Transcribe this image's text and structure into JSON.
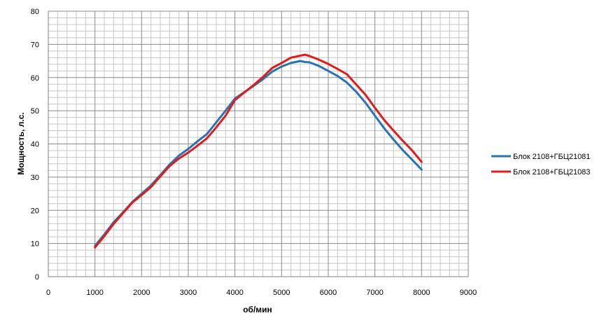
{
  "chart_data": {
    "type": "line",
    "title": "",
    "xlabel": "об/мин",
    "ylabel": "Мощность, л.с.",
    "xlim": [
      0,
      9000
    ],
    "ylim": [
      0,
      80
    ],
    "x_ticks": [
      "0",
      "1000",
      "2000",
      "3000",
      "4000",
      "5000",
      "6000",
      "7000",
      "8000",
      "9000"
    ],
    "y_ticks": [
      "0",
      "10",
      "20",
      "30",
      "40",
      "50",
      "60",
      "70",
      "80"
    ],
    "grid": true,
    "legend_position": "right",
    "series": [
      {
        "name": "Блок 2108+ГБЦ21081",
        "color": "#2a72b0",
        "x": [
          1000,
          1200,
          1400,
          1600,
          1800,
          2000,
          2200,
          2400,
          2600,
          2800,
          3000,
          3200,
          3400,
          3600,
          3800,
          4000,
          4200,
          4400,
          4600,
          4800,
          5000,
          5200,
          5400,
          5500,
          5600,
          5800,
          6000,
          6200,
          6400,
          6600,
          6800,
          7000,
          7200,
          7400,
          7600,
          7800,
          8000
        ],
        "y": [
          9.3,
          12.7,
          16.4,
          19.4,
          22.5,
          25.0,
          27.5,
          30.6,
          33.8,
          36.5,
          38.5,
          40.8,
          43.0,
          46.5,
          50.0,
          53.7,
          55.6,
          57.5,
          59.5,
          61.8,
          63.3,
          64.4,
          65.0,
          64.7,
          64.6,
          63.5,
          62.0,
          60.5,
          58.5,
          55.7,
          52.4,
          48.5,
          44.7,
          41.3,
          38.1,
          35.2,
          32.3
        ]
      },
      {
        "name": "Блок 2108+ГБЦ21083",
        "color": "#e01c1c",
        "x": [
          1000,
          1200,
          1400,
          1600,
          1800,
          2000,
          2200,
          2400,
          2600,
          2800,
          3000,
          3200,
          3400,
          3600,
          3800,
          4000,
          4200,
          4400,
          4600,
          4800,
          5000,
          5200,
          5400,
          5500,
          5600,
          5800,
          6000,
          6200,
          6400,
          6600,
          6800,
          7000,
          7200,
          7400,
          7600,
          7800,
          8000
        ],
        "y": [
          8.8,
          12.2,
          15.9,
          19.1,
          22.3,
          24.6,
          27.0,
          30.2,
          33.3,
          35.6,
          37.4,
          39.5,
          41.7,
          45.0,
          48.5,
          53.2,
          55.5,
          57.7,
          60.2,
          62.9,
          64.4,
          66.0,
          66.6,
          66.9,
          66.5,
          65.4,
          64.1,
          62.6,
          61.0,
          57.9,
          54.8,
          50.9,
          47.2,
          44.0,
          40.9,
          38.0,
          34.6
        ]
      }
    ]
  }
}
